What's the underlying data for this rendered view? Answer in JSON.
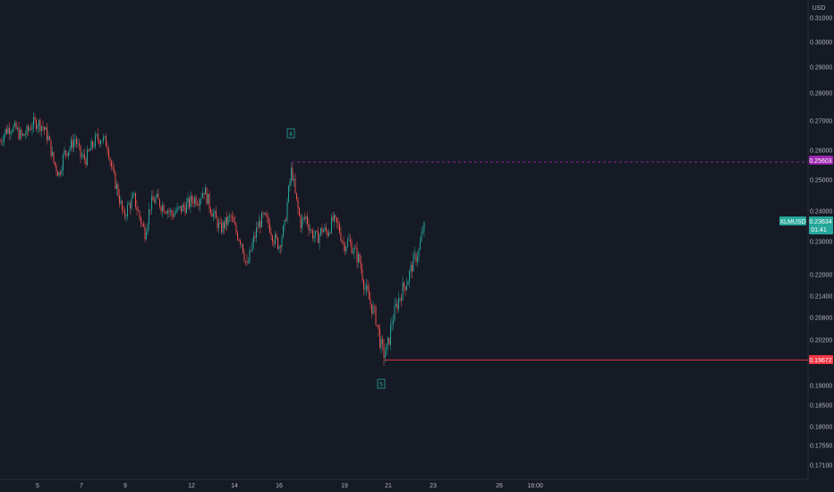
{
  "currency": "USD",
  "colors": {
    "background": "#161a25",
    "up": "#26a69a",
    "down": "#ef5350",
    "resistance": "#9c27b0",
    "support": "#f23645",
    "text": "#b2b5be",
    "grid": "#1f2430"
  },
  "price_axis": {
    "ticks": [
      "0.31000",
      "0.30000",
      "0.29000",
      "0.28000",
      "0.27000",
      "0.26000",
      "0.25000",
      "0.24000",
      "0.23000",
      "0.22000",
      "0.21400",
      "0.20800",
      "0.20200",
      "0.19000",
      "0.18500",
      "0.18000",
      "0.17550",
      "0.17100"
    ]
  },
  "time_axis": {
    "ticks": [
      "5",
      "7",
      "9",
      "12",
      "14",
      "16",
      "19",
      "21",
      "23",
      "26",
      "18:00"
    ]
  },
  "symbol": {
    "label": "XLMUSD",
    "price": "0.23634",
    "countdown": "01:41"
  },
  "resistance": {
    "price": "0.25603"
  },
  "support": {
    "price": "0.19672"
  },
  "wave_labels": [
    "4",
    "5"
  ],
  "chart_data": {
    "type": "candlestick",
    "title": "",
    "xlabel": "",
    "ylabel": "USD",
    "ylim": [
      0.1695,
      0.3145
    ],
    "x_ticks": [
      "5",
      "7",
      "9",
      "12",
      "14",
      "16",
      "19",
      "21",
      "23",
      "26",
      "18:00"
    ],
    "series": [
      {
        "type": "close_path_estimate",
        "points": [
          [
            0,
            0.263
          ],
          [
            6,
            0.2665
          ],
          [
            12,
            0.268
          ],
          [
            18,
            0.267
          ],
          [
            24,
            0.2645
          ],
          [
            30,
            0.266
          ],
          [
            36,
            0.269
          ],
          [
            42,
            0.2695
          ],
          [
            48,
            0.268
          ],
          [
            54,
            0.264
          ],
          [
            60,
            0.256
          ],
          [
            66,
            0.252
          ],
          [
            72,
            0.259
          ],
          [
            78,
            0.261
          ],
          [
            84,
            0.264
          ],
          [
            90,
            0.258
          ],
          [
            96,
            0.257
          ],
          [
            102,
            0.261
          ],
          [
            108,
            0.264
          ],
          [
            114,
            0.264
          ],
          [
            120,
            0.262
          ],
          [
            126,
            0.252
          ],
          [
            132,
            0.246
          ],
          [
            138,
            0.238
          ],
          [
            144,
            0.242
          ],
          [
            150,
            0.244
          ],
          [
            156,
            0.238
          ],
          [
            162,
            0.233
          ],
          [
            168,
            0.242
          ],
          [
            174,
            0.244
          ],
          [
            180,
            0.242
          ],
          [
            186,
            0.241
          ],
          [
            192,
            0.239
          ],
          [
            198,
            0.24
          ],
          [
            204,
            0.241
          ],
          [
            210,
            0.242
          ],
          [
            216,
            0.244
          ],
          [
            222,
            0.244
          ],
          [
            228,
            0.247
          ],
          [
            234,
            0.242
          ],
          [
            240,
            0.238
          ],
          [
            246,
            0.234
          ],
          [
            252,
            0.236
          ],
          [
            258,
            0.238
          ],
          [
            264,
            0.233
          ],
          [
            270,
            0.23
          ],
          [
            276,
            0.222
          ],
          [
            282,
            0.229
          ],
          [
            288,
            0.235
          ],
          [
            294,
            0.238
          ],
          [
            300,
            0.236
          ],
          [
            306,
            0.231
          ],
          [
            312,
            0.229
          ],
          [
            318,
            0.235
          ],
          [
            322,
            0.245
          ],
          [
            326,
            0.254
          ],
          [
            330,
            0.245
          ],
          [
            336,
            0.236
          ],
          [
            342,
            0.238
          ],
          [
            348,
            0.233
          ],
          [
            354,
            0.231
          ],
          [
            360,
            0.234
          ],
          [
            366,
            0.233
          ],
          [
            372,
            0.237
          ],
          [
            378,
            0.235
          ],
          [
            384,
            0.229
          ],
          [
            390,
            0.23
          ],
          [
            396,
            0.227
          ],
          [
            402,
            0.224
          ],
          [
            408,
            0.216
          ],
          [
            414,
            0.212
          ],
          [
            420,
            0.208
          ],
          [
            426,
            0.2
          ],
          [
            430,
            0.198
          ],
          [
            434,
            0.201
          ],
          [
            438,
            0.207
          ],
          [
            444,
            0.212
          ],
          [
            450,
            0.216
          ],
          [
            456,
            0.219
          ],
          [
            462,
            0.224
          ],
          [
            468,
            0.227
          ],
          [
            474,
            0.2363
          ]
        ]
      }
    ],
    "annotations": [
      {
        "type": "horizontal_line",
        "price": 0.25603,
        "label": "0.25603"
      },
      {
        "type": "horizontal_line",
        "price": 0.19672,
        "label": "0.19672"
      },
      {
        "type": "wave_label",
        "text": "4"
      },
      {
        "type": "wave_label",
        "text": "5"
      }
    ],
    "last_price": 0.23634,
    "grid": false,
    "legend": "none"
  }
}
